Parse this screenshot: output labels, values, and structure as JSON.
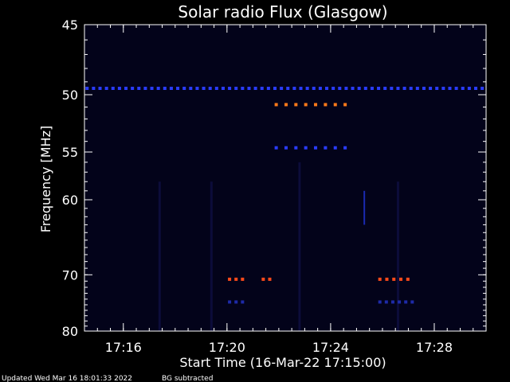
{
  "chart_data": {
    "type": "heatmap",
    "title": "Solar radio Flux (Glasgow)",
    "xlabel": "Start Time (16-Mar-22 17:15:00)",
    "ylabel": "Frequency [MHz]",
    "x_range_minutes": [
      "17:14:30",
      "17:30:00"
    ],
    "x_ticks": [
      "17:16",
      "17:20",
      "17:24",
      "17:28"
    ],
    "x_tick_minutes": [
      16,
      20,
      24,
      28
    ],
    "y_range": [
      45,
      80
    ],
    "y_scale": "reciprocal",
    "y_ticks": [
      45,
      50,
      55,
      60,
      70,
      80
    ],
    "y_inverted": true,
    "background_color": "#03031a",
    "features": [
      {
        "name": "band-49.5MHz",
        "freq": 49.5,
        "t_start": 14.6,
        "t_end": 29.9,
        "color": "#2a3cff",
        "dash_minutes": 0.25
      },
      {
        "name": "band-50.8MHz",
        "freq": 50.8,
        "t_start": 21.9,
        "t_end": 24.9,
        "color": "#ff7a1a",
        "dash_minutes": 0.38
      },
      {
        "name": "band-54.6MHz",
        "freq": 54.6,
        "t_start": 21.9,
        "t_end": 24.9,
        "color": "#2a3cff",
        "dash_minutes": 0.38
      },
      {
        "name": "burst-70.7MHz-a",
        "freq": 70.7,
        "t_start": 20.1,
        "t_end": 20.6,
        "color": "#ff4a1a",
        "dash_minutes": 0.25
      },
      {
        "name": "burst-70.7MHz-b",
        "freq": 70.7,
        "t_start": 21.4,
        "t_end": 21.8,
        "color": "#ff4a1a",
        "dash_minutes": 0.25
      },
      {
        "name": "burst-70.7MHz-c",
        "freq": 70.7,
        "t_start": 25.9,
        "t_end": 27.2,
        "color": "#ff4a1a",
        "dash_minutes": 0.27
      },
      {
        "name": "band-74.5MHz-a",
        "freq": 74.5,
        "t_start": 20.1,
        "t_end": 20.6,
        "color": "#1e2aa8",
        "dash_minutes": 0.25
      },
      {
        "name": "band-74.5MHz-b",
        "freq": 74.5,
        "t_start": 25.9,
        "t_end": 27.2,
        "color": "#1e2aa8",
        "dash_minutes": 0.25
      }
    ],
    "streaks": [
      {
        "time": 25.3,
        "f_from": 59,
        "f_to": 63,
        "color": "#1a2ab0"
      },
      {
        "time": 17.4,
        "f_from": 58,
        "f_to": 80,
        "color": "#0c0c3a"
      },
      {
        "time": 19.4,
        "f_from": 58,
        "f_to": 80,
        "color": "#0c0c3a"
      },
      {
        "time": 22.8,
        "f_from": 56,
        "f_to": 80,
        "color": "#0c0c3a"
      },
      {
        "time": 26.6,
        "f_from": 58,
        "f_to": 80,
        "color": "#0c0c3a"
      }
    ]
  },
  "footer": {
    "updated": "Updated Wed Mar 16 18:01:33 2022",
    "note": "BG subtracted"
  }
}
